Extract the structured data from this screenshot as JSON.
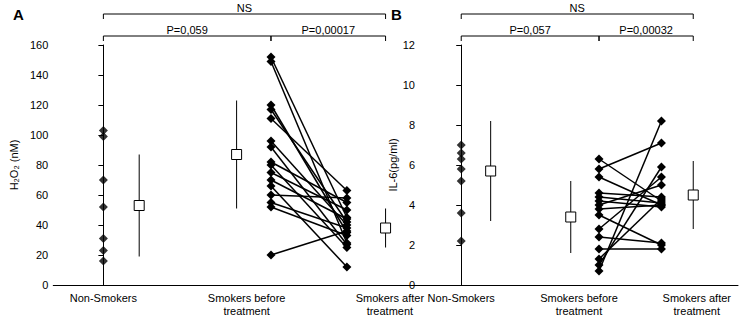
{
  "chart_data": [
    {
      "type": "scatter",
      "title": "A",
      "ylabel": "H₂O₂ (nM)",
      "categories": [
        "Non-Smokers",
        "Smokers before\ntreatment",
        "Smokers after\ntreatment"
      ],
      "values": [
        [
          103,
          99,
          70,
          52,
          31,
          23,
          16
        ],
        [
          152,
          149,
          120,
          117,
          111,
          96,
          92,
          82,
          80,
          75,
          70,
          66,
          60,
          55,
          52,
          20
        ],
        [
          45,
          28,
          35,
          42,
          63,
          40,
          27,
          55,
          25,
          50,
          44,
          12,
          58,
          38,
          33,
          36
        ]
      ],
      "mean": [
        53,
        87,
        38
      ],
      "sd": [
        34,
        36,
        13
      ],
      "color": "#000000",
      "marker": "diamond",
      "line_style": "solid",
      "grid": false,
      "ylim": [
        0,
        160
      ],
      "yticks": [
        0,
        20,
        40,
        60,
        80,
        100,
        120,
        140,
        160
      ],
      "annotations": [
        {
          "text": "NS",
          "from": "Non-Smokers",
          "to": "Smokers after\ntreatment"
        },
        {
          "text": "P=0,059",
          "from": "Non-Smokers",
          "to": "Smokers before\ntreatment"
        },
        {
          "text": "P=0,00017",
          "from": "Smokers before\ntreatment",
          "to": "Smokers after\ntreatment"
        }
      ]
    },
    {
      "type": "scatter",
      "title": "B",
      "ylabel": "IL-6(pg/ml)",
      "categories": [
        "Non-Smokers",
        "Smokers before\ntreatment",
        "Smokers after\ntreatment"
      ],
      "values": [
        [
          7.0,
          6.6,
          6.3,
          5.8,
          5.2,
          3.6,
          2.2
        ],
        [
          6.3,
          5.8,
          5.4,
          4.6,
          4.4,
          4.2,
          4.0,
          3.8,
          3.5,
          2.8,
          2.4,
          1.8,
          1.3,
          1.0,
          0.7
        ],
        [
          4.2,
          7.1,
          4.0,
          4.4,
          4.1,
          3.9,
          5.0,
          4.0,
          2.0,
          5.4,
          2.1,
          1.8,
          4.3,
          5.9,
          8.2
        ]
      ],
      "mean": [
        5.7,
        3.4,
        4.5
      ],
      "sd": [
        2.5,
        1.8,
        1.7
      ],
      "color": "#000000",
      "marker": "diamond",
      "line_style": "solid",
      "grid": false,
      "ylim": [
        0,
        12
      ],
      "yticks": [
        0,
        2,
        4,
        6,
        8,
        10,
        12
      ],
      "annotations": [
        {
          "text": "NS",
          "from": "Non-Smokers",
          "to": "Smokers after\ntreatment"
        },
        {
          "text": "P=0,057",
          "from": "Non-Smokers",
          "to": "Smokers before\ntreatment"
        },
        {
          "text": "P=0,00032",
          "from": "Smokers before\ntreatment",
          "to": "Smokers after\ntreatment"
        }
      ]
    }
  ]
}
